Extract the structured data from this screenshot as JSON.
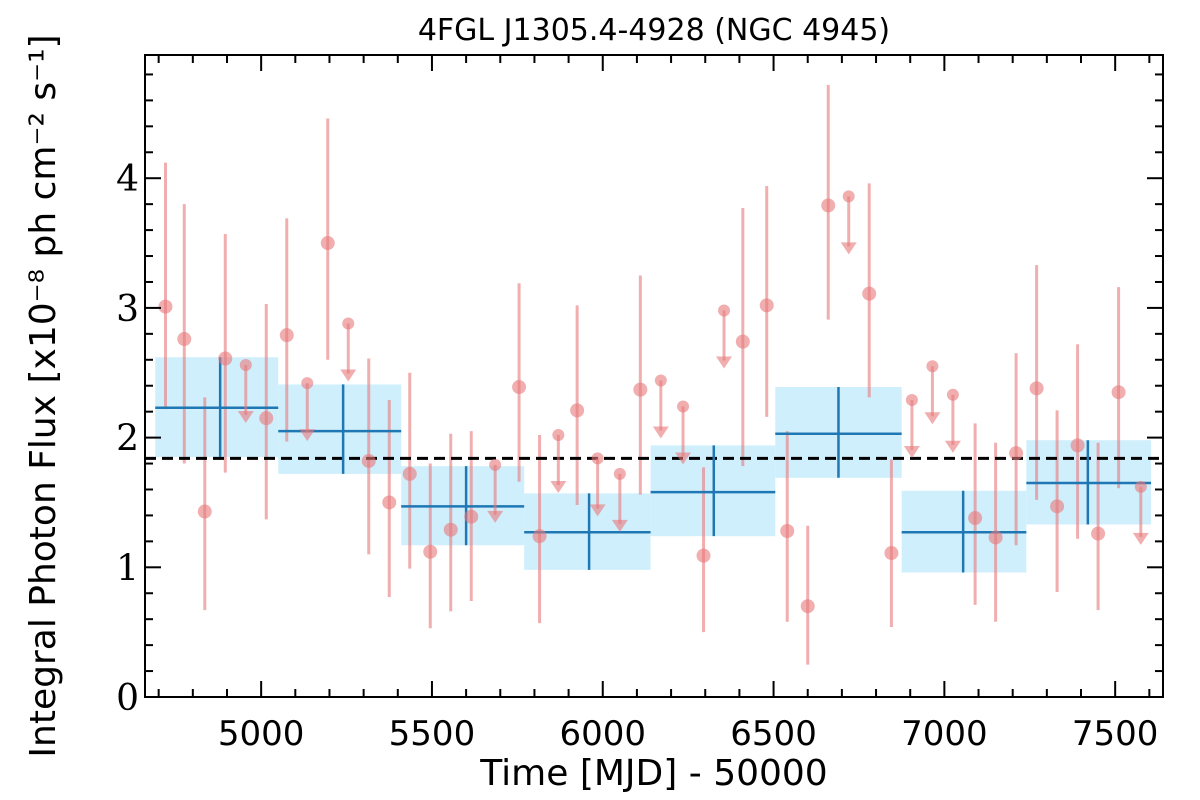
{
  "chart_data": {
    "type": "scatter",
    "title": "4FGL J1305.4-4928 (NGC 4945)",
    "xlabel": "Time [MJD] - 50000",
    "ylabel": "Integral Photon Flux [x10⁻⁸ ph cm⁻² s⁻¹]",
    "xlim": [
      4660,
      7640
    ],
    "ylim": [
      0,
      4.95
    ],
    "x_ticks": [
      5000,
      5500,
      6000,
      6500,
      7000,
      7500
    ],
    "y_ticks": [
      0,
      1,
      2,
      3,
      4
    ],
    "mean_flux": 1.84,
    "colors": {
      "short_bins": "#e8787a",
      "long_bins": "#1f77b4",
      "long_band": "#cdeefc",
      "mean_line": "#000000"
    },
    "short_bins": {
      "detections": [
        {
          "x": 4720,
          "y": 3.01,
          "lo": 2.22,
          "hi": 4.12
        },
        {
          "x": 4775,
          "y": 2.76,
          "lo": 1.8,
          "hi": 3.8
        },
        {
          "x": 4835,
          "y": 1.43,
          "lo": 0.67,
          "hi": 2.31
        },
        {
          "x": 4895,
          "y": 2.61,
          "lo": 1.73,
          "hi": 3.57
        },
        {
          "x": 5015,
          "y": 2.15,
          "lo": 1.37,
          "hi": 3.03
        },
        {
          "x": 5075,
          "y": 2.79,
          "lo": 1.97,
          "hi": 3.69
        },
        {
          "x": 5195,
          "y": 3.5,
          "lo": 2.6,
          "hi": 4.46
        },
        {
          "x": 5315,
          "y": 1.82,
          "lo": 1.1,
          "hi": 2.61
        },
        {
          "x": 5375,
          "y": 1.5,
          "lo": 0.77,
          "hi": 2.29
        },
        {
          "x": 5435,
          "y": 1.72,
          "lo": 0.99,
          "hi": 2.5
        },
        {
          "x": 5495,
          "y": 1.12,
          "lo": 0.53,
          "hi": 1.8
        },
        {
          "x": 5555,
          "y": 1.29,
          "lo": 0.66,
          "hi": 2.03
        },
        {
          "x": 5615,
          "y": 1.39,
          "lo": 0.74,
          "hi": 2.05
        },
        {
          "x": 5755,
          "y": 2.39,
          "lo": 1.66,
          "hi": 3.19
        },
        {
          "x": 5815,
          "y": 1.24,
          "lo": 0.57,
          "hi": 2.02
        },
        {
          "x": 5925,
          "y": 2.21,
          "lo": 1.48,
          "hi": 3.02
        },
        {
          "x": 6110,
          "y": 2.37,
          "lo": 1.56,
          "hi": 3.25
        },
        {
          "x": 6295,
          "y": 1.09,
          "lo": 0.5,
          "hi": 1.77
        },
        {
          "x": 6410,
          "y": 2.74,
          "lo": 1.78,
          "hi": 3.77
        },
        {
          "x": 6480,
          "y": 3.02,
          "lo": 2.16,
          "hi": 3.94
        },
        {
          "x": 6540,
          "y": 1.28,
          "lo": 0.58,
          "hi": 2.05
        },
        {
          "x": 6600,
          "y": 0.7,
          "lo": 0.25,
          "hi": 1.32
        },
        {
          "x": 6660,
          "y": 3.79,
          "lo": 2.91,
          "hi": 4.72
        },
        {
          "x": 6780,
          "y": 3.11,
          "lo": 2.31,
          "hi": 3.96
        },
        {
          "x": 6845,
          "y": 1.11,
          "lo": 0.54,
          "hi": 1.83
        },
        {
          "x": 7090,
          "y": 1.38,
          "lo": 0.71,
          "hi": 2.11
        },
        {
          "x": 7150,
          "y": 1.23,
          "lo": 0.58,
          "hi": 1.96
        },
        {
          "x": 7210,
          "y": 1.88,
          "lo": 1.17,
          "hi": 2.65
        },
        {
          "x": 7270,
          "y": 2.38,
          "lo": 1.52,
          "hi": 3.33
        },
        {
          "x": 7330,
          "y": 1.47,
          "lo": 0.81,
          "hi": 2.21
        },
        {
          "x": 7390,
          "y": 1.94,
          "lo": 1.22,
          "hi": 2.72
        },
        {
          "x": 7450,
          "y": 1.26,
          "lo": 0.67,
          "hi": 1.96
        },
        {
          "x": 7510,
          "y": 2.35,
          "lo": 1.61,
          "hi": 3.16
        }
      ],
      "upper_limits": [
        {
          "x": 4955,
          "y": 2.56
        },
        {
          "x": 5135,
          "y": 2.42
        },
        {
          "x": 5255,
          "y": 2.88
        },
        {
          "x": 5685,
          "y": 1.79
        },
        {
          "x": 5870,
          "y": 2.02
        },
        {
          "x": 5985,
          "y": 1.84
        },
        {
          "x": 6050,
          "y": 1.72
        },
        {
          "x": 6170,
          "y": 2.44
        },
        {
          "x": 6235,
          "y": 2.24
        },
        {
          "x": 6355,
          "y": 2.98
        },
        {
          "x": 6720,
          "y": 3.86
        },
        {
          "x": 6905,
          "y": 2.29
        },
        {
          "x": 6965,
          "y": 2.55
        },
        {
          "x": 7025,
          "y": 2.33
        },
        {
          "x": 7575,
          "y": 1.62
        }
      ]
    },
    "long_bins": [
      {
        "x0": 4690,
        "x1": 5050,
        "x": 4880,
        "y": 2.23,
        "lo": 1.85,
        "hi": 2.62,
        "err_lo": 1.85,
        "err_hi": 2.62
      },
      {
        "x0": 5050,
        "x1": 5410,
        "x": 5240,
        "y": 2.05,
        "lo": 1.72,
        "hi": 2.41,
        "err_lo": 1.72,
        "err_hi": 2.41
      },
      {
        "x0": 5410,
        "x1": 5770,
        "x": 5600,
        "y": 1.47,
        "lo": 1.17,
        "hi": 1.78,
        "err_lo": 1.17,
        "err_hi": 1.78
      },
      {
        "x0": 5770,
        "x1": 6140,
        "x": 5960,
        "y": 1.27,
        "lo": 0.98,
        "hi": 1.57,
        "err_lo": 0.98,
        "err_hi": 1.57
      },
      {
        "x0": 6140,
        "x1": 6505,
        "x": 6325,
        "y": 1.58,
        "lo": 1.24,
        "hi": 1.94,
        "err_lo": 1.24,
        "err_hi": 1.94
      },
      {
        "x0": 6505,
        "x1": 6875,
        "x": 6690,
        "y": 2.03,
        "lo": 1.69,
        "hi": 2.39,
        "err_lo": 1.69,
        "err_hi": 2.39
      },
      {
        "x0": 6875,
        "x1": 7240,
        "x": 7055,
        "y": 1.27,
        "lo": 0.96,
        "hi": 1.59,
        "err_lo": 0.96,
        "err_hi": 1.59
      },
      {
        "x0": 7240,
        "x1": 7605,
        "x": 7420,
        "y": 1.65,
        "lo": 1.33,
        "hi": 1.98,
        "err_lo": 1.33,
        "err_hi": 1.98
      }
    ]
  }
}
